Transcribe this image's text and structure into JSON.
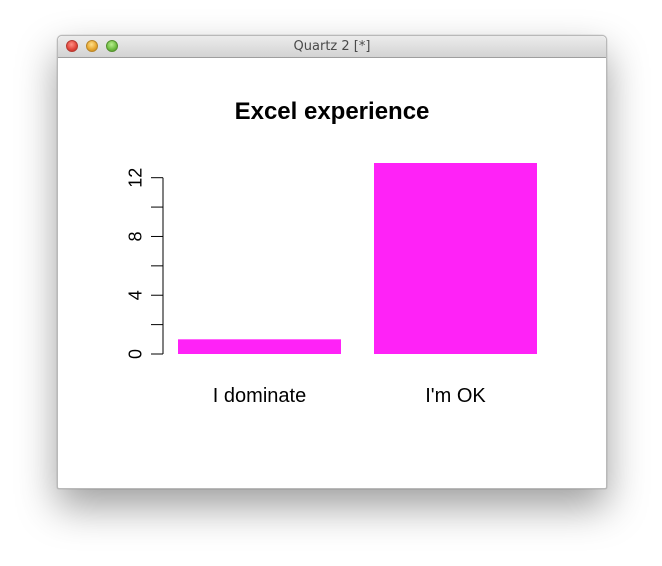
{
  "window": {
    "title": "Quartz 2 [*]"
  },
  "chart_data": {
    "type": "bar",
    "title": "Excel experience",
    "categories": [
      "I dominate",
      "I'm OK"
    ],
    "values": [
      1,
      13
    ],
    "ylim": [
      0,
      13
    ],
    "yticks": [
      0,
      4,
      8,
      12
    ],
    "bar_color": "#ff22f7"
  }
}
